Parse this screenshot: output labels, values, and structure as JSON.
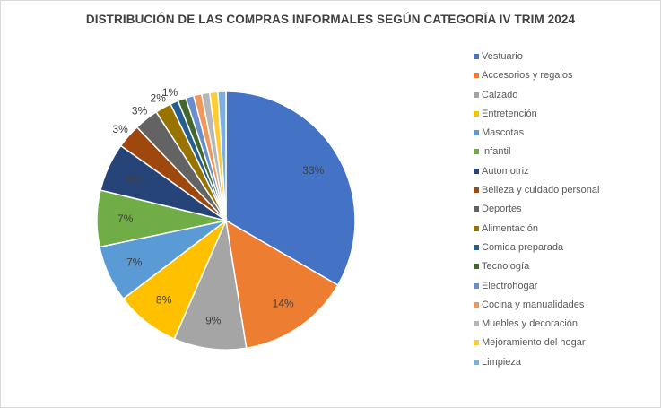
{
  "chart_data": {
    "type": "pie",
    "title": "DISTRIBUCIÓN DE LAS COMPRAS INFORMALES SEGÚN CATEGORÍA IV TRIM 2024",
    "categories": [
      "Vestuario",
      "Accesorios y regalos",
      "Calzado",
      "Entretención",
      "Mascotas",
      "Infantil",
      "Automotriz",
      "Belleza y cuidado personal",
      "Deportes",
      "Alimentación",
      "Comida preparada",
      "Tecnología",
      "Electrohogar",
      "Cocina y manualidades",
      "Muebles y decoración",
      "Mejoramiento del hogar",
      "Limpieza"
    ],
    "values": [
      33,
      14,
      9,
      8,
      7,
      7,
      6,
      3,
      3,
      2,
      1,
      1,
      1,
      1,
      1,
      1,
      1
    ],
    "data_labels": [
      "33%",
      "14%",
      "9%",
      "8%",
      "7%",
      "7%",
      "6%",
      "3%",
      "3%",
      "2%",
      "1%",
      "",
      "",
      "",
      "",
      "",
      ""
    ],
    "colors": [
      "#4472C4",
      "#ED7D31",
      "#A5A5A5",
      "#FFC000",
      "#5B9BD5",
      "#70AD47",
      "#264478",
      "#9E480E",
      "#636363",
      "#997300",
      "#255E91",
      "#43682B",
      "#698ED0",
      "#F1975A",
      "#B7B7B7",
      "#FFCD33",
      "#7CAFDD"
    ],
    "legend_position": "right"
  }
}
